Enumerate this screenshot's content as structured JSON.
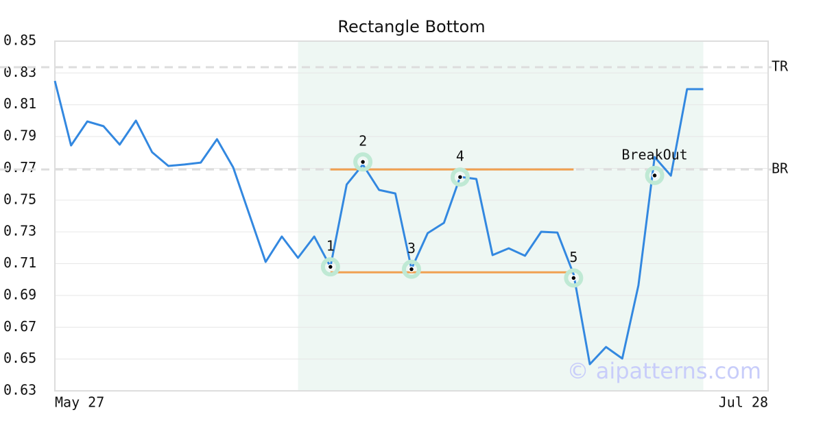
{
  "chart_data": {
    "type": "line",
    "title": "Rectangle Bottom",
    "categories": [
      "May 27",
      null,
      null,
      null,
      null,
      null,
      null,
      null,
      null,
      null,
      null,
      null,
      null,
      null,
      null,
      null,
      null,
      null,
      null,
      null,
      null,
      null,
      null,
      null,
      null,
      null,
      null,
      null,
      null,
      null,
      null,
      null,
      null,
      null,
      null,
      null,
      null,
      null,
      null,
      null,
      null,
      null,
      null,
      null,
      "Jul 28"
    ],
    "values": [
      0.825,
      0.7844,
      0.7995,
      0.7965,
      0.7849,
      0.8,
      0.7801,
      0.7715,
      0.7724,
      0.7736,
      0.7883,
      0.7706,
      0.7409,
      0.7111,
      0.7271,
      0.7137,
      0.7271,
      0.7081,
      0.7598,
      0.7723,
      0.7564,
      0.7542,
      0.7068,
      0.7292,
      0.7357,
      0.7646,
      0.7633,
      0.7154,
      0.7197,
      0.715,
      0.7301,
      0.7296,
      0.7033,
      0.6468,
      0.6576,
      0.6503,
      0.6964,
      0.7771,
      0.7654,
      0.8198,
      0.8198,
      null,
      null,
      null,
      null
    ],
    "color": "#3388e0",
    "ylim": [
      0.63,
      0.85
    ],
    "yticks": [
      0.63,
      0.65,
      0.67,
      0.69,
      0.71,
      0.73,
      0.75,
      0.77,
      0.79,
      0.81,
      0.83,
      0.85
    ],
    "grid": true,
    "levels": [
      {
        "label": "TR",
        "value": 0.8336
      },
      {
        "label": "BR",
        "value": 0.7693
      }
    ],
    "rectangle": {
      "top": 0.7693,
      "bottom": 0.7046,
      "start": 17,
      "end": 32,
      "color": "#f0a050"
    },
    "shaded": {
      "start": 15,
      "end": 40,
      "color": "#eef7f3"
    },
    "points": [
      {
        "x": 17,
        "value": 0.708,
        "label": "1"
      },
      {
        "x": 19,
        "value": 0.774,
        "label": "2"
      },
      {
        "x": 22,
        "value": 0.7065,
        "label": "3"
      },
      {
        "x": 25,
        "value": 0.7645,
        "label": "4"
      },
      {
        "x": 32,
        "value": 0.701,
        "label": "5"
      },
      {
        "x": 37,
        "value": 0.7655,
        "label": "BreakOut"
      }
    ],
    "watermark": "© aipatterns.com"
  }
}
